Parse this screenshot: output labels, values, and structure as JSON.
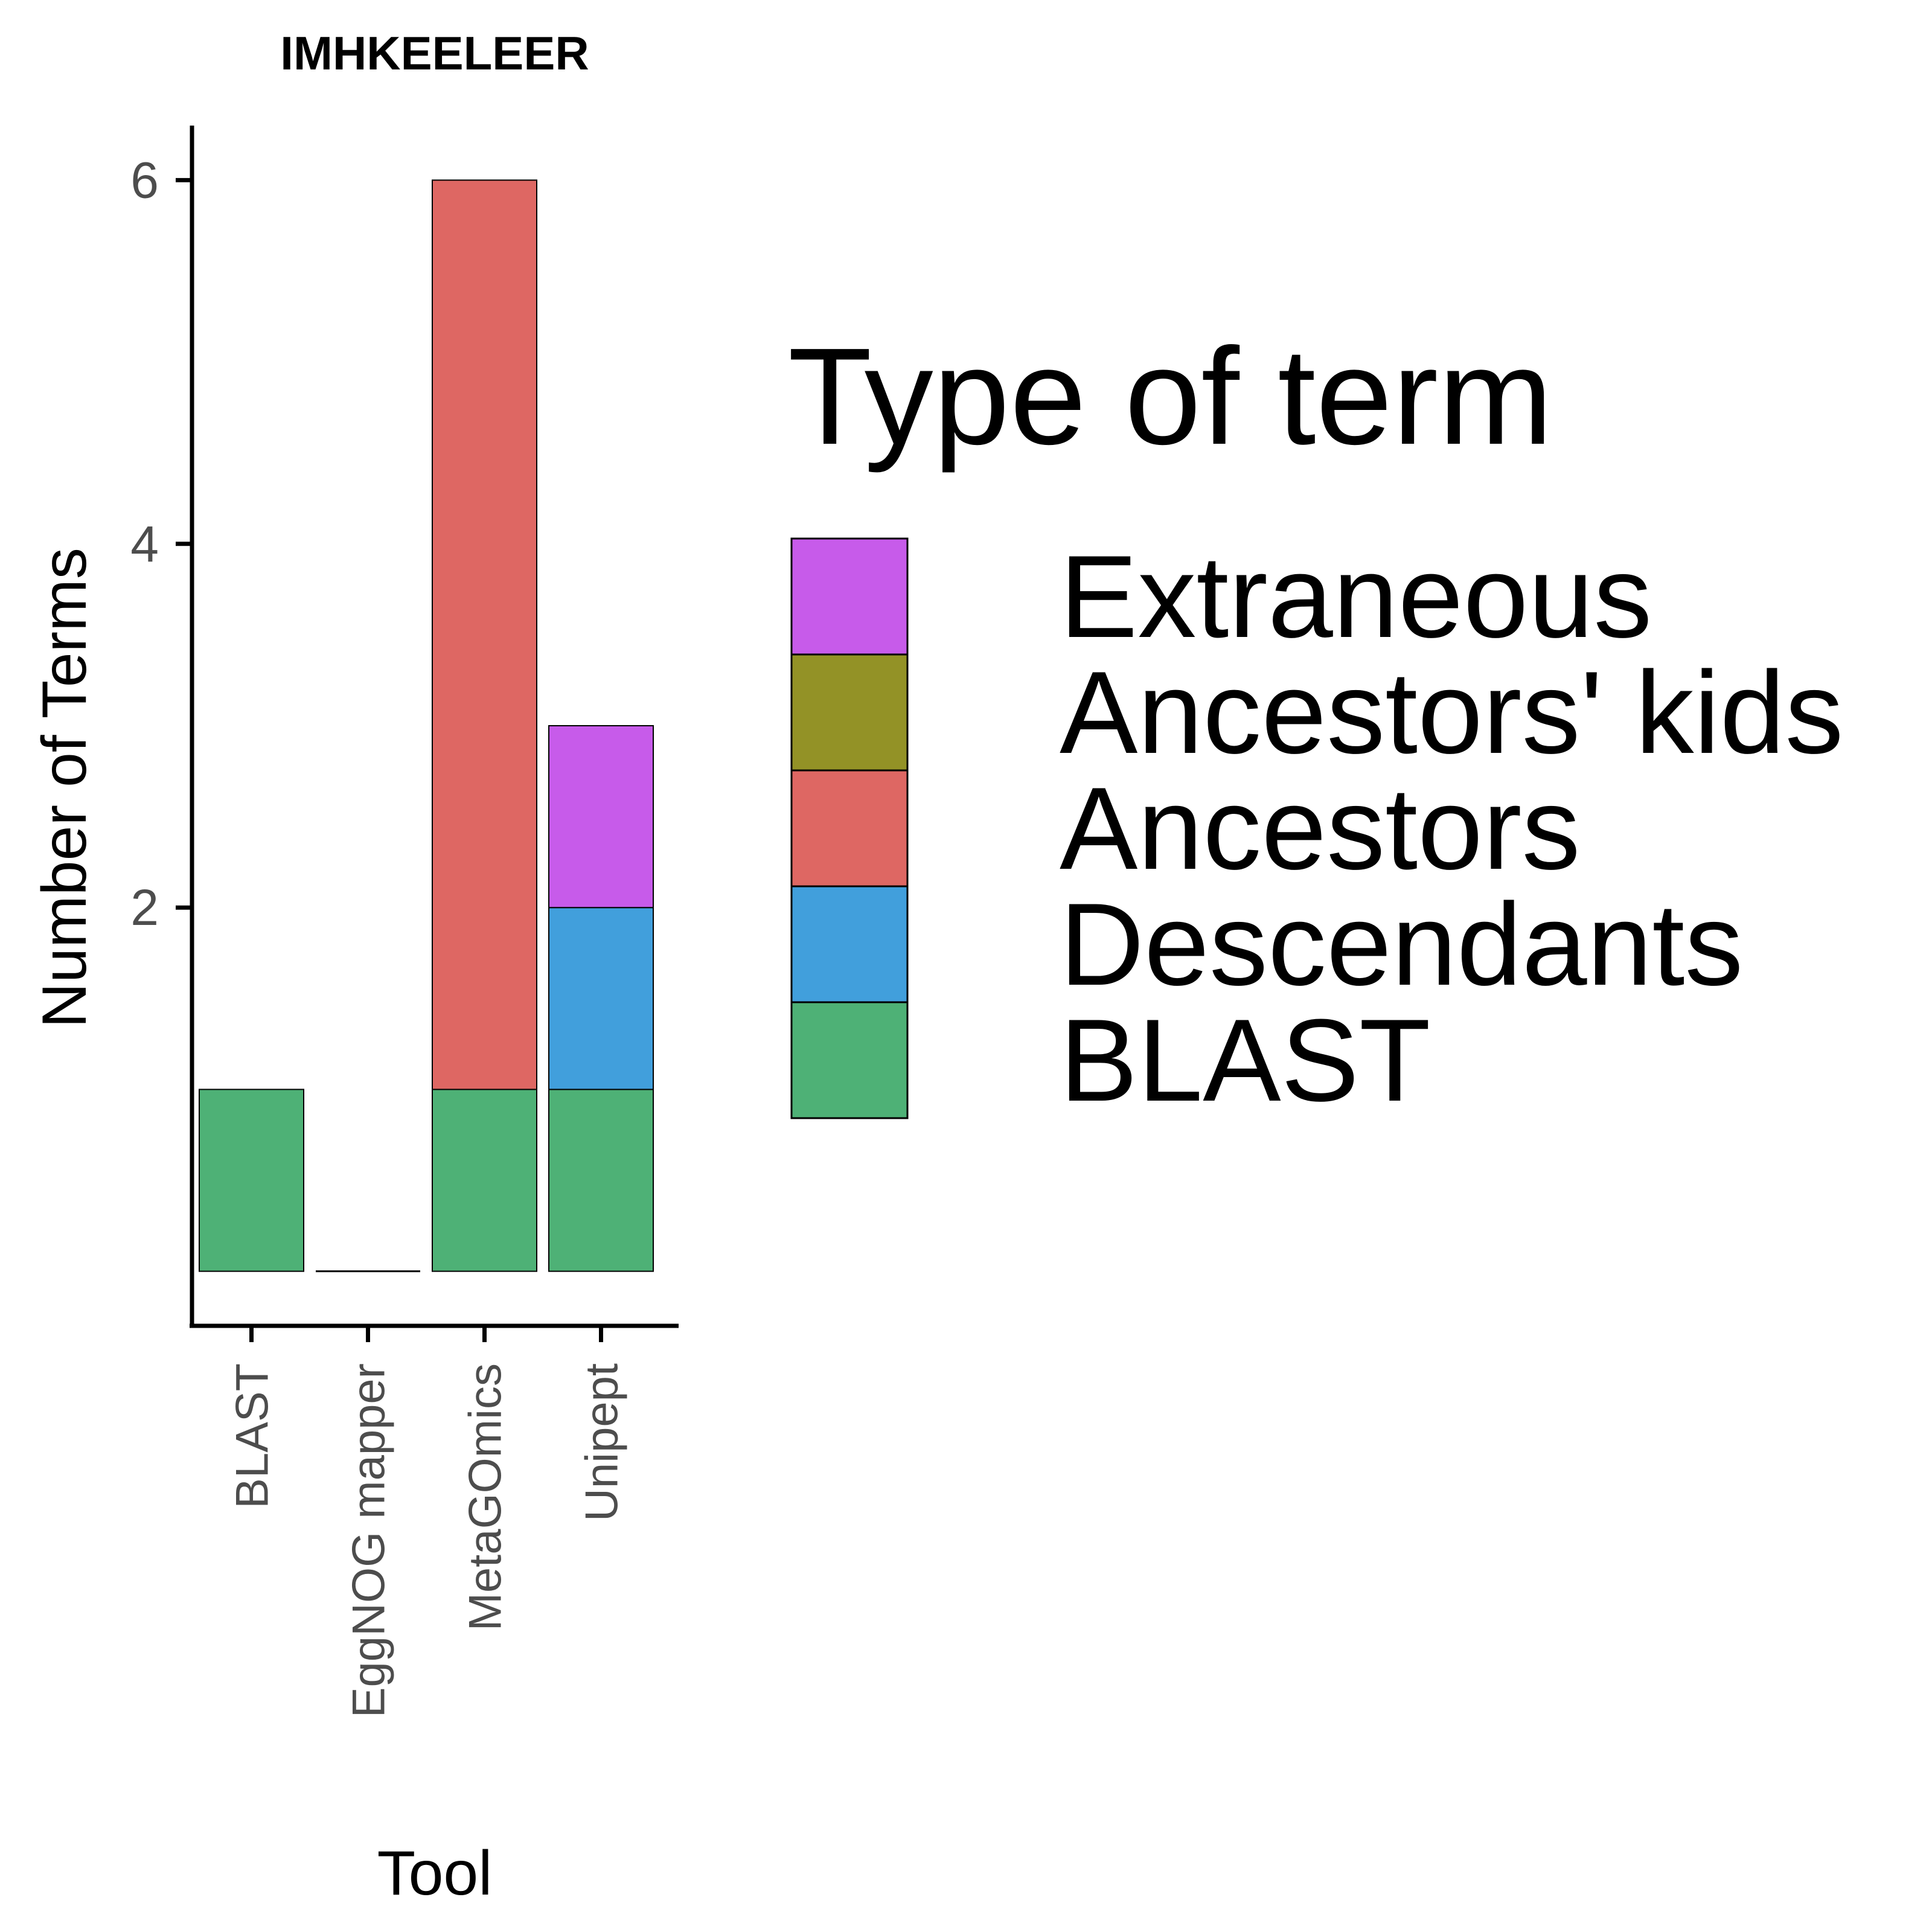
{
  "chart_data": {
    "type": "bar",
    "stacked": true,
    "title": "IMHKEELEER",
    "xlabel": "Tool",
    "ylabel": "Number of Terms",
    "categories": [
      "BLAST",
      "EggNOG mapper",
      "MetaGOmics",
      "Unipept"
    ],
    "ylim": [
      -0.3,
      6.3
    ],
    "yticks": [
      2,
      4,
      6
    ],
    "grid": false,
    "legend": {
      "title": "Type of term",
      "position": "right",
      "items": [
        "Extraneous",
        "Ancestors' kids",
        "Ancestors",
        "Descendants",
        "BLAST"
      ]
    },
    "colors": {
      "Extraneous": "#c75bea",
      "Ancestors' kids": "#939226",
      "Ancestors": "#de6763",
      "Descendants": "#419fdc",
      "BLAST": "#4eb176"
    },
    "series": [
      {
        "name": "BLAST",
        "values": [
          1,
          0,
          1,
          1
        ]
      },
      {
        "name": "Descendants",
        "values": [
          0,
          0,
          0,
          1
        ]
      },
      {
        "name": "Ancestors",
        "values": [
          0,
          0,
          5,
          0
        ]
      },
      {
        "name": "Ancestors' kids",
        "values": [
          0,
          0,
          0,
          0
        ]
      },
      {
        "name": "Extraneous",
        "values": [
          0,
          0,
          0,
          1
        ]
      }
    ]
  }
}
